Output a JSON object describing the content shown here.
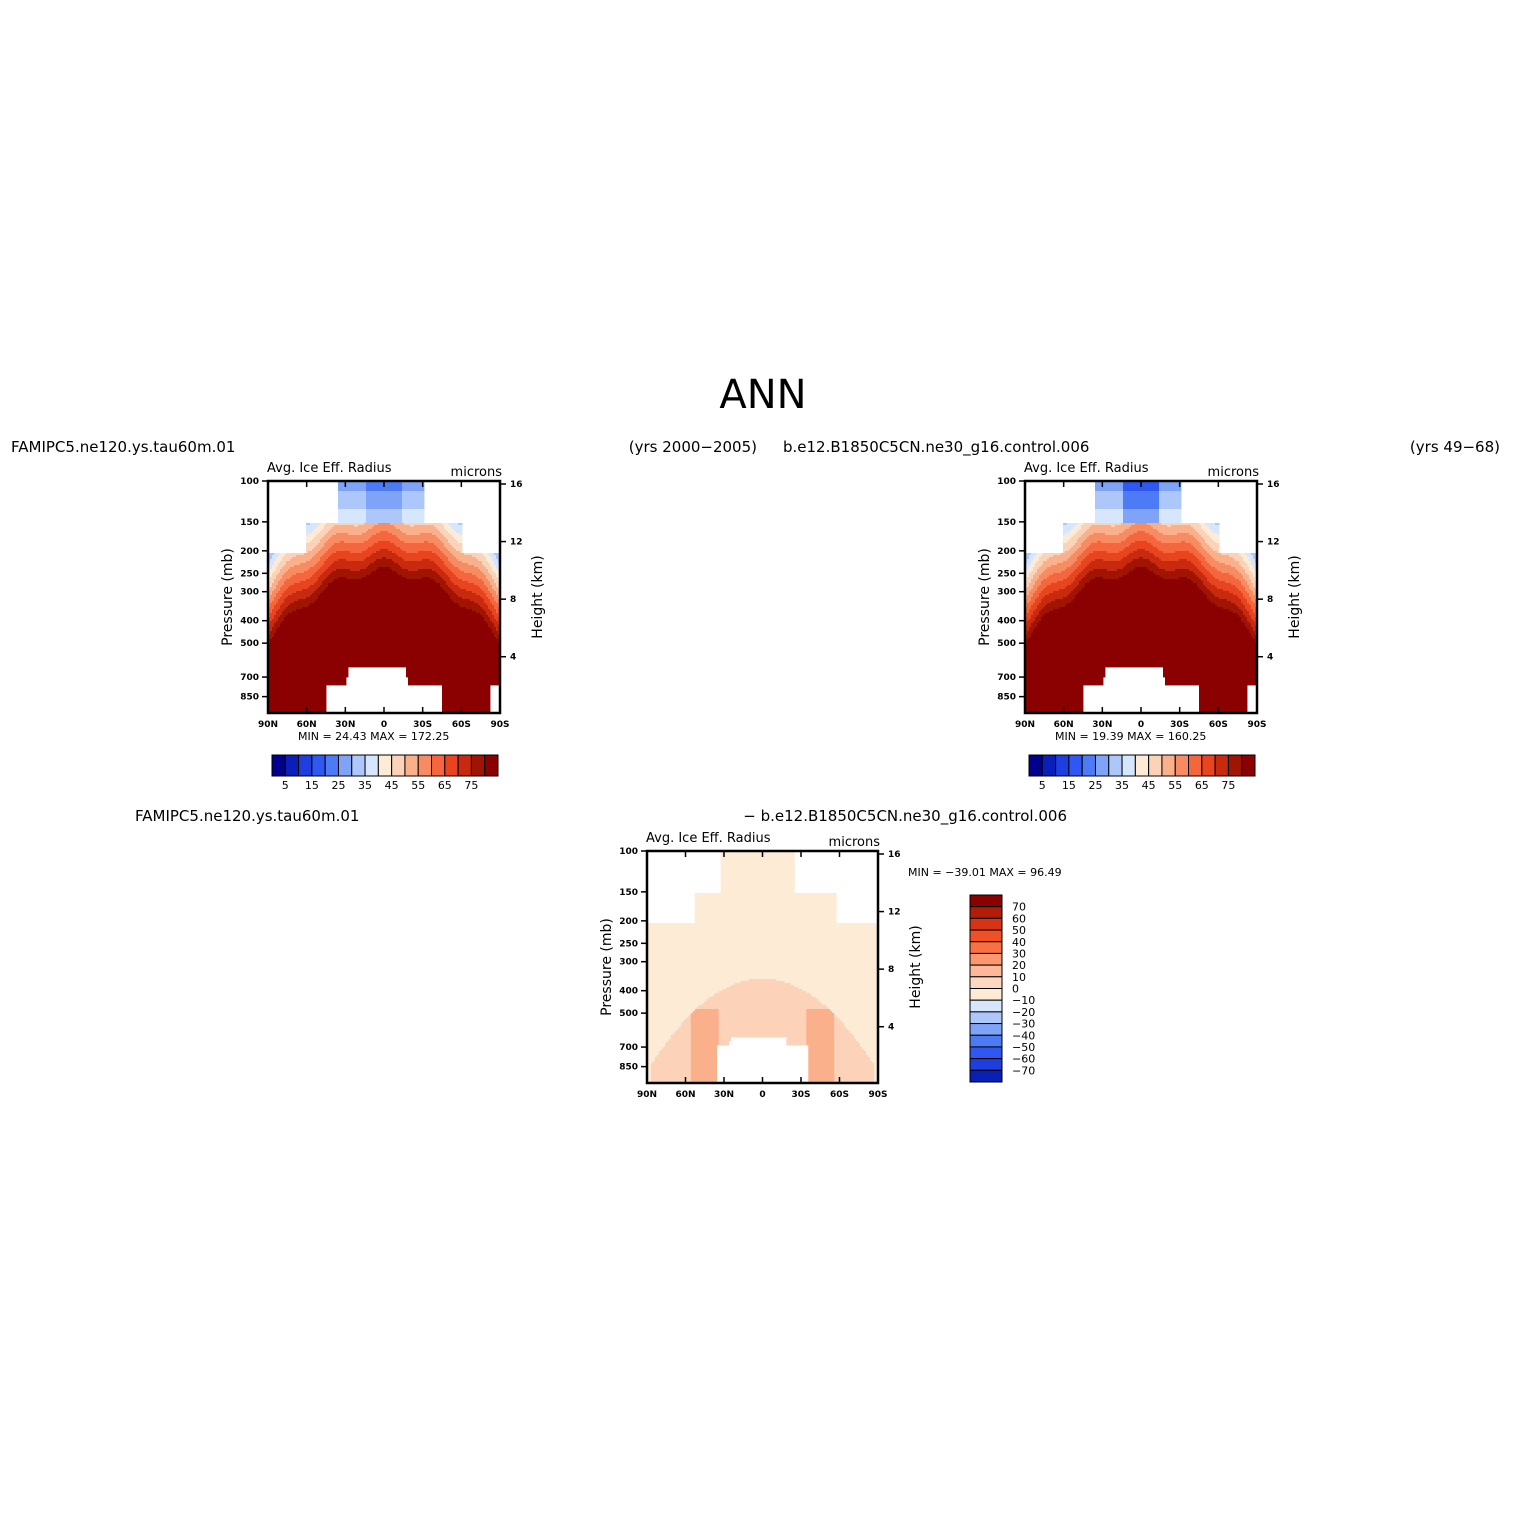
{
  "figure": {
    "title": "ANN",
    "left_case": "FAMIPC5.ne120.ys.tau60m.01",
    "left_years": "(yrs 2000−2005)",
    "right_case": "b.e12.B1850C5CN.ne30_g16.control.006",
    "right_years": "(yrs 49−68)",
    "diff_left_label": "FAMIPC5.ne120.ys.tau60m.01",
    "diff_right_label": "− b.e12.B1850C5CN.ne30_g16.control.006"
  },
  "colors": {
    "cool": [
      "#00008c",
      "#0a1fb8",
      "#1e3ee0",
      "#2f58f2",
      "#4d7bf5",
      "#7fa3f7",
      "#aec7fb",
      "#d6e6fd"
    ],
    "warm": [
      "#fdebd6",
      "#fcd2b8",
      "#fbb08c",
      "#f98b62",
      "#f5663e",
      "#e84420",
      "#c82a10",
      "#a01404",
      "#8b0000"
    ]
  },
  "chart_data": [
    {
      "type": "heatmap",
      "name": "left",
      "title": "Avg. Ice Eff. Radius",
      "units": "microns",
      "ylabel": "Pressure (mb)",
      "ylabel_right": "Height (km)",
      "x_ticks": [
        "90N",
        "60N",
        "30N",
        "0",
        "30S",
        "60S",
        "90S"
      ],
      "y_ticks": [
        "100",
        "150",
        "200",
        "250",
        "300",
        "400",
        "500",
        "700",
        "850"
      ],
      "y_right_ticks": [
        "16",
        "12",
        "8",
        "4"
      ],
      "min_max": "MIN =   24.43   MAX =  172.25",
      "colorbar_labels": [
        "5",
        "15",
        "25",
        "35",
        "45",
        "55",
        "65",
        "75"
      ],
      "levels": [
        5,
        10,
        15,
        20,
        25,
        30,
        35,
        40,
        45,
        50,
        55,
        60,
        65,
        70,
        75
      ]
    },
    {
      "type": "heatmap",
      "name": "right",
      "title": "Avg. Ice Eff. Radius",
      "units": "microns",
      "ylabel": "Pressure (mb)",
      "ylabel_right": "Height (km)",
      "x_ticks": [
        "90N",
        "60N",
        "30N",
        "0",
        "30S",
        "60S",
        "90S"
      ],
      "y_ticks": [
        "100",
        "150",
        "200",
        "250",
        "300",
        "400",
        "500",
        "700",
        "850"
      ],
      "y_right_ticks": [
        "16",
        "12",
        "8",
        "4"
      ],
      "min_max": "MIN =   19.39   MAX =  160.25",
      "colorbar_labels": [
        "5",
        "15",
        "25",
        "35",
        "45",
        "55",
        "65",
        "75"
      ],
      "levels": [
        5,
        10,
        15,
        20,
        25,
        30,
        35,
        40,
        45,
        50,
        55,
        60,
        65,
        70,
        75
      ]
    },
    {
      "type": "heatmap",
      "name": "difference",
      "title": "Avg. Ice Eff. Radius",
      "units": "microns",
      "ylabel": "Pressure (mb)",
      "ylabel_right": "Height (km)",
      "x_ticks": [
        "90N",
        "60N",
        "30N",
        "0",
        "30S",
        "60S",
        "90S"
      ],
      "y_ticks": [
        "100",
        "150",
        "200",
        "250",
        "300",
        "400",
        "500",
        "700",
        "850"
      ],
      "y_right_ticks": [
        "16",
        "12",
        "8",
        "4"
      ],
      "min_max": "MIN = −39.01   MAX =   96.49",
      "colorbar_labels": [
        "70",
        "60",
        "50",
        "40",
        "30",
        "20",
        "10",
        "0",
        "−10",
        "−20",
        "−30",
        "−40",
        "−50",
        "−60",
        "−70"
      ]
    }
  ]
}
